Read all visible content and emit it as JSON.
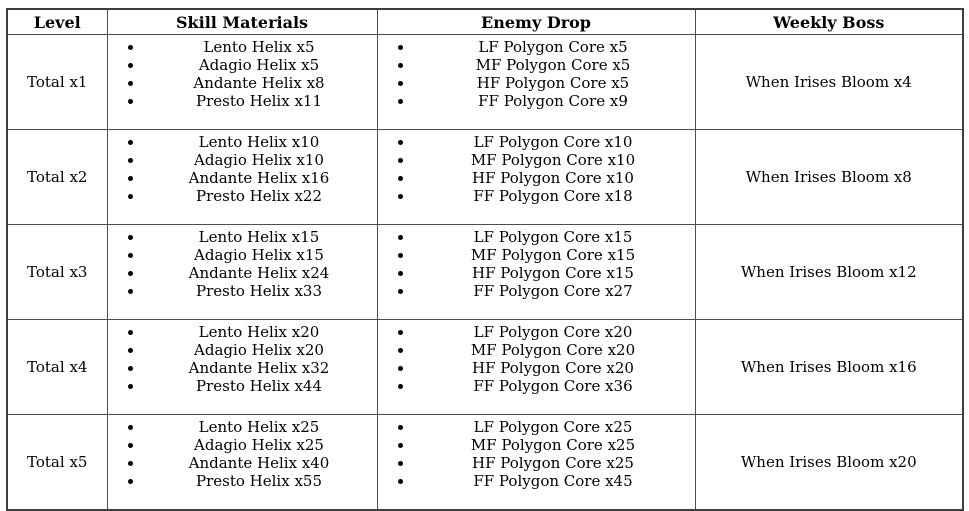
{
  "page": {
    "background_color": "#ffffff",
    "border_color": "#4d4d4d",
    "text_color": "#000000"
  },
  "table": {
    "headers": [
      "Level",
      "Skill Materials",
      "Enemy Drop",
      "Weekly Boss"
    ],
    "rows": [
      {
        "level": "Total x1",
        "skill_materials": [
          "Lento Helix x5",
          "Adagio Helix x5",
          "Andante Helix x8",
          "Presto Helix x11"
        ],
        "enemy_drops": [
          "LF Polygon Core x5",
          "MF Polygon Core x5",
          "HF Polygon Core x5",
          "FF Polygon Core x9"
        ],
        "weekly_boss": "When Irises Bloom x4"
      },
      {
        "level": "Total x2",
        "skill_materials": [
          "Lento Helix x10",
          "Adagio Helix x10",
          "Andante Helix x16",
          "Presto Helix x22"
        ],
        "enemy_drops": [
          "LF Polygon Core x10",
          "MF Polygon Core x10",
          "HF Polygon Core x10",
          "FF Polygon Core x18"
        ],
        "weekly_boss": "When Irises Bloom x8"
      },
      {
        "level": "Total x3",
        "skill_materials": [
          "Lento Helix x15",
          "Adagio Helix x15",
          "Andante Helix x24",
          "Presto Helix x33"
        ],
        "enemy_drops": [
          "LF Polygon Core x15",
          "MF Polygon Core x15",
          "HF Polygon Core x15",
          "FF Polygon Core x27"
        ],
        "weekly_boss": "When Irises Bloom x12"
      },
      {
        "level": "Total x4",
        "skill_materials": [
          "Lento Helix x20",
          "Adagio Helix x20",
          "Andante Helix x32",
          "Presto Helix x44"
        ],
        "enemy_drops": [
          "LF Polygon Core x20",
          "MF Polygon Core x20",
          "HF Polygon Core x20",
          "FF Polygon Core x36"
        ],
        "weekly_boss": "When Irises Bloom x16"
      },
      {
        "level": "Total x5",
        "skill_materials": [
          "Lento Helix x25",
          "Adagio Helix x25",
          "Andante Helix x40",
          "Presto Helix x55"
        ],
        "enemy_drops": [
          "LF Polygon Core x25",
          "MF Polygon Core x25",
          "HF Polygon Core x25",
          "FF Polygon Core x45"
        ],
        "weekly_boss": "When Irises Bloom x20"
      }
    ]
  }
}
